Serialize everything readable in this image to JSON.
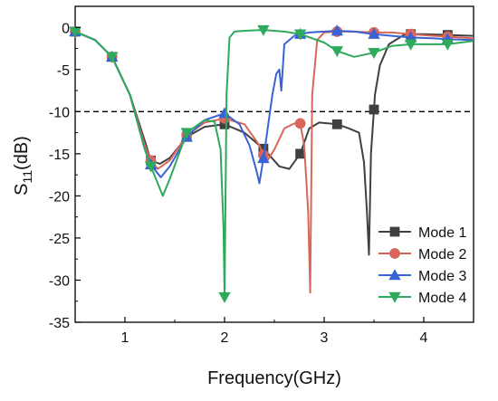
{
  "chart_data": {
    "type": "line",
    "title": "",
    "xlabel": "Frequency(GHz)",
    "ylabel_main": "S",
    "ylabel_sub": "11",
    "ylabel_unit": "(dB)",
    "xlim": [
      0.5,
      4.5
    ],
    "ylim": [
      -35,
      2.5
    ],
    "xticks": [
      1,
      2,
      3,
      4
    ],
    "yticks": [
      0,
      -5,
      -10,
      -15,
      -20,
      -25,
      -30,
      -35
    ],
    "grid": false,
    "legend_position": "bottom-right",
    "reference_line": {
      "y": -10,
      "style": "dashed",
      "color": "#000000"
    },
    "series": [
      {
        "name": "Mode 1",
        "color": "#404040",
        "marker": "square",
        "x": [
          0.5,
          0.7,
          0.87,
          1.05,
          1.2,
          1.26,
          1.35,
          1.45,
          1.62,
          1.8,
          2.0,
          2.2,
          2.4,
          2.55,
          2.65,
          2.76,
          2.85,
          2.95,
          3.13,
          3.25,
          3.35,
          3.4,
          3.43,
          3.45,
          3.47,
          3.51,
          3.56,
          3.65,
          3.8,
          3.87,
          4.0,
          4.24,
          4.5
        ],
        "y": [
          -0.5,
          -1.5,
          -3.5,
          -8.0,
          -13.5,
          -15.8,
          -16.2,
          -15.5,
          -13.0,
          -11.8,
          -11.5,
          -12.5,
          -14.5,
          -16.5,
          -16.8,
          -15.0,
          -12.0,
          -11.3,
          -11.5,
          -12.0,
          -12.5,
          -16.0,
          -22.0,
          -27.0,
          -15.0,
          -8.0,
          -4.5,
          -2.0,
          -0.9,
          -0.8,
          -0.8,
          -0.9,
          -1.0
        ]
      },
      {
        "name": "Mode 2",
        "color": "#d9665a",
        "marker": "circle",
        "x": [
          0.5,
          0.7,
          0.87,
          1.05,
          1.2,
          1.26,
          1.33,
          1.45,
          1.62,
          1.8,
          2.0,
          2.2,
          2.35,
          2.42,
          2.5,
          2.6,
          2.7,
          2.76,
          2.8,
          2.84,
          2.86,
          2.88,
          2.93,
          3.0,
          3.13,
          3.3,
          3.5,
          3.68,
          3.87,
          4.1,
          4.24,
          4.5
        ],
        "y": [
          -0.5,
          -1.5,
          -3.5,
          -8.0,
          -14.0,
          -15.8,
          -16.8,
          -15.8,
          -12.8,
          -11.3,
          -10.8,
          -11.5,
          -14.0,
          -16.0,
          -14.5,
          -12.0,
          -11.4,
          -11.4,
          -14.0,
          -22.0,
          -31.5,
          -8.0,
          -1.5,
          -0.6,
          -0.5,
          -0.5,
          -0.6,
          -0.6,
          -0.8,
          -1.0,
          -1.1,
          -1.3
        ]
      },
      {
        "name": "Mode 3",
        "color": "#3a62d4",
        "marker": "triangle-up",
        "x": [
          0.5,
          0.7,
          0.87,
          1.05,
          1.2,
          1.26,
          1.36,
          1.45,
          1.62,
          1.8,
          2.0,
          2.15,
          2.25,
          2.32,
          2.35,
          2.4,
          2.48,
          2.52,
          2.55,
          2.57,
          2.6,
          2.7,
          2.76,
          2.85,
          3.0,
          3.13,
          3.3,
          3.5,
          3.68,
          3.87,
          4.1,
          4.24,
          4.5
        ],
        "y": [
          -0.5,
          -1.5,
          -3.5,
          -8.0,
          -14.5,
          -16.3,
          -17.8,
          -16.5,
          -13.0,
          -11.0,
          -10.2,
          -11.5,
          -14.0,
          -17.0,
          -18.5,
          -14.8,
          -8.0,
          -5.5,
          -5.0,
          -7.5,
          -2.0,
          -1.0,
          -0.8,
          -0.6,
          -0.5,
          -0.4,
          -0.5,
          -0.8,
          -1.0,
          -1.2,
          -1.3,
          -1.4,
          -1.5
        ]
      },
      {
        "name": "Mode 4",
        "color": "#2eaa5c",
        "marker": "triangle-down",
        "x": [
          0.5,
          0.7,
          0.87,
          1.05,
          1.2,
          1.26,
          1.38,
          1.45,
          1.62,
          1.8,
          1.9,
          1.96,
          1.99,
          2.0,
          2.02,
          2.05,
          2.1,
          2.2,
          2.39,
          2.6,
          2.76,
          3.0,
          3.13,
          3.3,
          3.5,
          3.68,
          3.87,
          4.1,
          4.24,
          4.5
        ],
        "y": [
          -0.5,
          -1.5,
          -3.5,
          -8.0,
          -14.5,
          -16.5,
          -20.0,
          -18.0,
          -12.5,
          -11.0,
          -11.2,
          -14.5,
          -24.0,
          -32.0,
          -8.0,
          -1.2,
          -0.5,
          -0.4,
          -0.3,
          -0.5,
          -0.8,
          -1.8,
          -2.8,
          -3.5,
          -3.0,
          -2.2,
          -2.0,
          -2.0,
          -2.0,
          -1.6
        ]
      }
    ],
    "marker_x": [
      0.5,
      0.87,
      1.26,
      1.62,
      2.0,
      2.39,
      2.76,
      3.13,
      3.5,
      3.87,
      4.24
    ]
  }
}
